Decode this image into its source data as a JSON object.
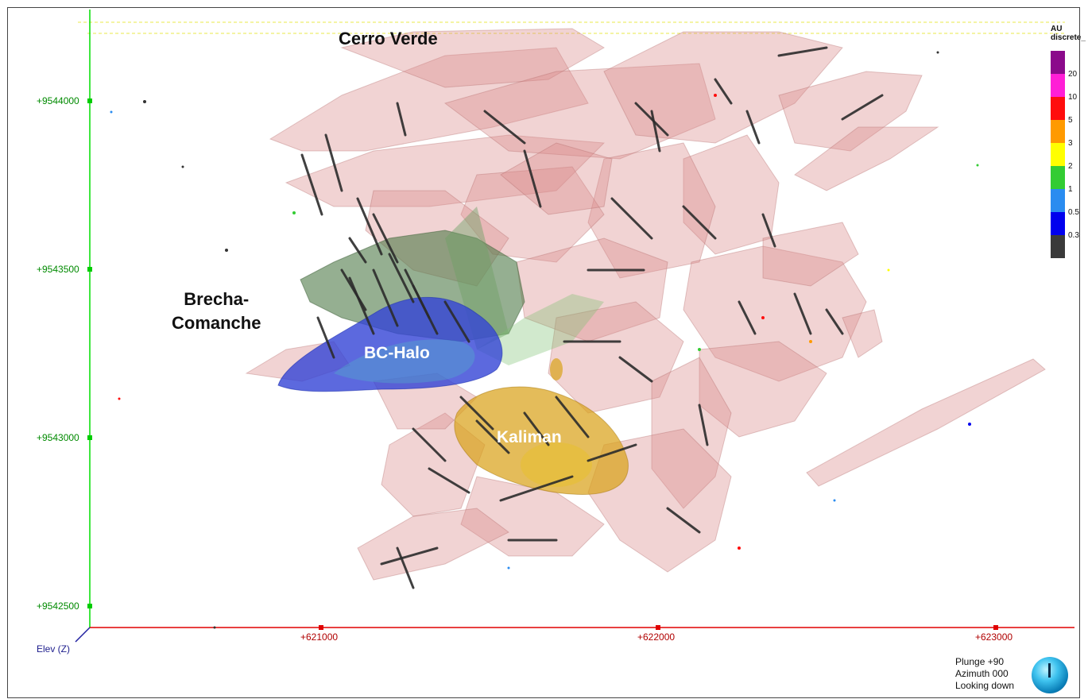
{
  "regions": {
    "cerro_verde": "Cerro Verde",
    "brecha_line1": "Brecha-",
    "brecha_line2": "Comanche",
    "bc_halo": "BC-Halo",
    "kaliman": "Kaliman"
  },
  "axes": {
    "y_ticks": [
      "+9544000",
      "+9543500",
      "+9543000",
      "+9542500"
    ],
    "x_ticks": [
      "+621000",
      "+622000",
      "+623000"
    ],
    "axis_name": "Elev (Z)"
  },
  "legend": {
    "title_line1": "AU",
    "title_line2": "discrete_",
    "entries": [
      {
        "value": "20",
        "color": "#8b0a8b"
      },
      {
        "value": "10",
        "color": "#ff1fd6"
      },
      {
        "value": "5",
        "color": "#ff0d0d"
      },
      {
        "value": "3",
        "color": "#ff9a00"
      },
      {
        "value": "2",
        "color": "#ffff00"
      },
      {
        "value": "1",
        "color": "#33cc33"
      },
      {
        "value": "0.5",
        "color": "#2a8cf0"
      },
      {
        "value": "0.3",
        "color": "#0000ee"
      },
      {
        "value": "",
        "color": "#3a3a3a"
      }
    ]
  },
  "orientation": {
    "plunge": "Plunge +90",
    "azimuth": "Azimuth 000",
    "looking": "Looking down"
  },
  "colors": {
    "shell_pink": "#d98b8b",
    "halo_blue": "#3344d6",
    "brecha_green": "#5a8a52",
    "kaliman_gold": "#d9a21a",
    "drillhole": "#2b2b2b",
    "y_axis": "#00cc00",
    "x_axis": "#e00000"
  }
}
